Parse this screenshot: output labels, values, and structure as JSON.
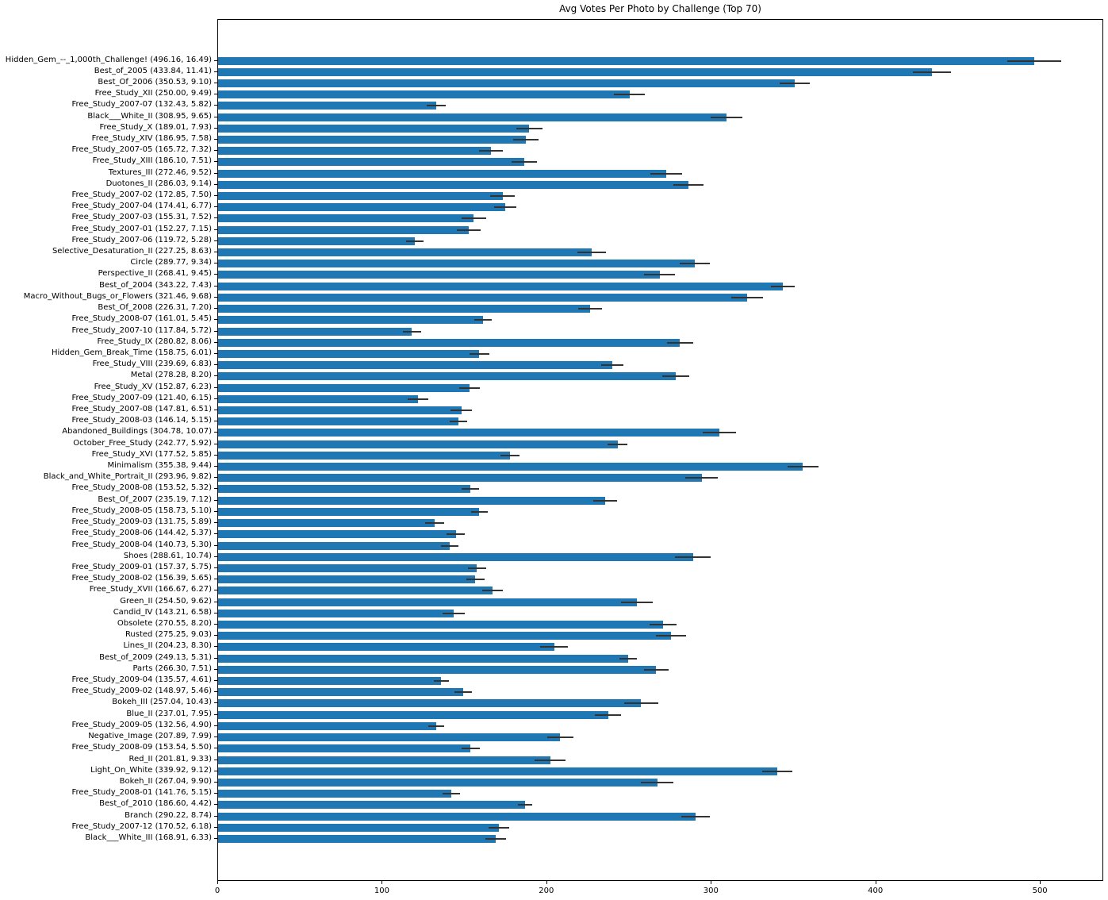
{
  "chart_data": {
    "type": "bar",
    "orientation": "horizontal",
    "title": "Avg Votes Per Photo by Challenge (Top 70)",
    "xlabel": "",
    "ylabel": "",
    "xlim": [
      0,
      538.5
    ],
    "x_ticks": [
      0,
      100,
      200,
      300,
      400,
      500
    ],
    "grid": false,
    "legend": "none",
    "bar_color": "#1f77b4",
    "error_color": "#333333",
    "label_format": "name (value, error)",
    "items": [
      {
        "label": "Hidden_Gem_--_1,000th_Challenge!",
        "value": 496.16,
        "error": 16.49
      },
      {
        "label": "Best_of_2005",
        "value": 433.84,
        "error": 11.41
      },
      {
        "label": "Best_Of_2006",
        "value": 350.53,
        "error": 9.1
      },
      {
        "label": "Free_Study_XII",
        "value": 250.0,
        "error": 9.49
      },
      {
        "label": "Free_Study_2007-07",
        "value": 132.43,
        "error": 5.82
      },
      {
        "label": "Black___White_II",
        "value": 308.95,
        "error": 9.65
      },
      {
        "label": "Free_Study_X",
        "value": 189.01,
        "error": 7.93
      },
      {
        "label": "Free_Study_XIV",
        "value": 186.95,
        "error": 7.58
      },
      {
        "label": "Free_Study_2007-05",
        "value": 165.72,
        "error": 7.32
      },
      {
        "label": "Free_Study_XIII",
        "value": 186.1,
        "error": 7.51
      },
      {
        "label": "Textures_III",
        "value": 272.46,
        "error": 9.52
      },
      {
        "label": "Duotones_II",
        "value": 286.03,
        "error": 9.14
      },
      {
        "label": "Free_Study_2007-02",
        "value": 172.85,
        "error": 7.5
      },
      {
        "label": "Free_Study_2007-04",
        "value": 174.41,
        "error": 6.77
      },
      {
        "label": "Free_Study_2007-03",
        "value": 155.31,
        "error": 7.52
      },
      {
        "label": "Free_Study_2007-01",
        "value": 152.27,
        "error": 7.15
      },
      {
        "label": "Free_Study_2007-06",
        "value": 119.72,
        "error": 5.28
      },
      {
        "label": "Selective_Desaturation_II",
        "value": 227.25,
        "error": 8.63
      },
      {
        "label": "Circle",
        "value": 289.77,
        "error": 9.34
      },
      {
        "label": "Perspective_II",
        "value": 268.41,
        "error": 9.45
      },
      {
        "label": "Best_of_2004",
        "value": 343.22,
        "error": 7.43
      },
      {
        "label": "Macro_Without_Bugs_or_Flowers",
        "value": 321.46,
        "error": 9.68
      },
      {
        "label": "Best_Of_2008",
        "value": 226.31,
        "error": 7.2
      },
      {
        "label": "Free_Study_2008-07",
        "value": 161.01,
        "error": 5.45
      },
      {
        "label": "Free_Study_2007-10",
        "value": 117.84,
        "error": 5.72
      },
      {
        "label": "Free_Study_IX",
        "value": 280.82,
        "error": 8.06
      },
      {
        "label": "Hidden_Gem_Break_Time",
        "value": 158.75,
        "error": 6.01
      },
      {
        "label": "Free_Study_VIII",
        "value": 239.69,
        "error": 6.83
      },
      {
        "label": "Metal",
        "value": 278.28,
        "error": 8.2
      },
      {
        "label": "Free_Study_XV",
        "value": 152.87,
        "error": 6.23
      },
      {
        "label": "Free_Study_2007-09",
        "value": 121.4,
        "error": 6.15
      },
      {
        "label": "Free_Study_2007-08",
        "value": 147.81,
        "error": 6.51
      },
      {
        "label": "Free_Study_2008-03",
        "value": 146.14,
        "error": 5.15
      },
      {
        "label": "Abandoned_Buildings",
        "value": 304.78,
        "error": 10.07
      },
      {
        "label": "October_Free_Study",
        "value": 242.77,
        "error": 5.92
      },
      {
        "label": "Free_Study_XVI",
        "value": 177.52,
        "error": 5.85
      },
      {
        "label": "Minimalism",
        "value": 355.38,
        "error": 9.44
      },
      {
        "label": "Black_and_White_Portrait_II",
        "value": 293.96,
        "error": 9.82
      },
      {
        "label": "Free_Study_2008-08",
        "value": 153.52,
        "error": 5.32
      },
      {
        "label": "Best_Of_2007",
        "value": 235.19,
        "error": 7.12
      },
      {
        "label": "Free_Study_2008-05",
        "value": 158.73,
        "error": 5.1
      },
      {
        "label": "Free_Study_2009-03",
        "value": 131.75,
        "error": 5.89
      },
      {
        "label": "Free_Study_2008-06",
        "value": 144.42,
        "error": 5.37
      },
      {
        "label": "Free_Study_2008-04",
        "value": 140.73,
        "error": 5.3
      },
      {
        "label": "Shoes",
        "value": 288.61,
        "error": 10.74
      },
      {
        "label": "Free_Study_2009-01",
        "value": 157.37,
        "error": 5.75
      },
      {
        "label": "Free_Study_2008-02",
        "value": 156.39,
        "error": 5.65
      },
      {
        "label": "Free_Study_XVII",
        "value": 166.67,
        "error": 6.27
      },
      {
        "label": "Green_II",
        "value": 254.5,
        "error": 9.62
      },
      {
        "label": "Candid_IV",
        "value": 143.21,
        "error": 6.58
      },
      {
        "label": "Obsolete",
        "value": 270.55,
        "error": 8.2
      },
      {
        "label": "Rusted",
        "value": 275.25,
        "error": 9.03
      },
      {
        "label": "Lines_II",
        "value": 204.23,
        "error": 8.3
      },
      {
        "label": "Best_of_2009",
        "value": 249.13,
        "error": 5.31
      },
      {
        "label": "Parts",
        "value": 266.3,
        "error": 7.51
      },
      {
        "label": "Free_Study_2009-04",
        "value": 135.57,
        "error": 4.61
      },
      {
        "label": "Free_Study_2009-02",
        "value": 148.97,
        "error": 5.46
      },
      {
        "label": "Bokeh_III",
        "value": 257.04,
        "error": 10.43
      },
      {
        "label": "Blue_II",
        "value": 237.01,
        "error": 7.95
      },
      {
        "label": "Free_Study_2009-05",
        "value": 132.56,
        "error": 4.9
      },
      {
        "label": "Negative_Image",
        "value": 207.89,
        "error": 7.99
      },
      {
        "label": "Free_Study_2008-09",
        "value": 153.54,
        "error": 5.5
      },
      {
        "label": "Red_II",
        "value": 201.81,
        "error": 9.33
      },
      {
        "label": "Light_On_White",
        "value": 339.92,
        "error": 9.12
      },
      {
        "label": "Bokeh_II",
        "value": 267.04,
        "error": 9.9
      },
      {
        "label": "Free_Study_2008-01",
        "value": 141.76,
        "error": 5.15
      },
      {
        "label": "Best_of_2010",
        "value": 186.6,
        "error": 4.42
      },
      {
        "label": "Branch",
        "value": 290.22,
        "error": 8.74
      },
      {
        "label": "Free_Study_2007-12",
        "value": 170.52,
        "error": 6.18
      },
      {
        "label": "Black___White_III",
        "value": 168.91,
        "error": 6.33
      }
    ]
  }
}
